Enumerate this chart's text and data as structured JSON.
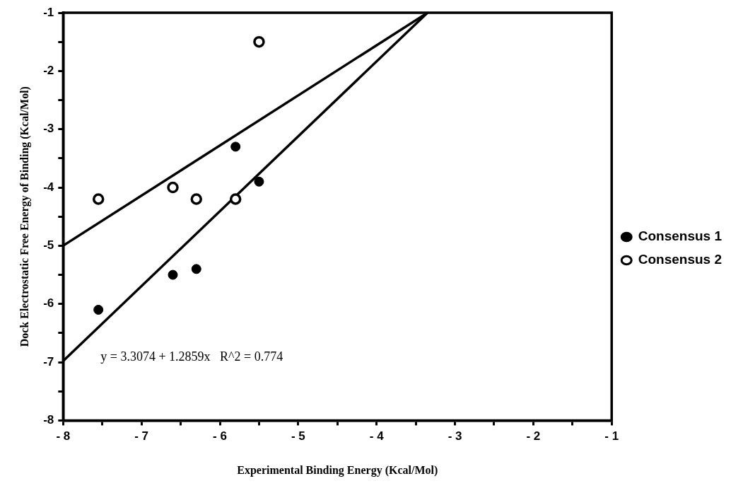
{
  "chart_data": {
    "type": "scatter",
    "xlabel": "Experimental Binding Energy (Kcal/Mol)",
    "ylabel": "Dock Electrostatic Free Energy of Binding (Kcal/Mol)",
    "series": [
      {
        "name": "Consensus 1",
        "color": "#000000",
        "x": [
          -7.55,
          -6.6,
          -6.3,
          -5.8,
          -5.5
        ],
        "values": [
          -6.1,
          -5.5,
          -5.4,
          -3.3,
          -3.9
        ]
      },
      {
        "name": "Consensus 2",
        "color": "#000000",
        "x": [
          -7.55,
          -6.6,
          -6.3,
          -5.8,
          -5.5
        ],
        "values": [
          -4.2,
          -4.0,
          -4.2,
          -4.2,
          -1.5
        ]
      },
      {
        "type": "line",
        "marker": "none",
        "color": "#000000",
        "x": [
          -8,
          -3.35
        ],
        "values": [
          -6.98,
          -1
        ]
      },
      {
        "type": "line",
        "marker": "none",
        "color": "#000000",
        "x": [
          -8,
          -3.35
        ],
        "values": [
          -5.0,
          -1
        ]
      }
    ],
    "annotations": [
      "y = 3.3074 + 1.2859x   R^2 = 0.774"
    ],
    "xlim": [
      -8,
      -1
    ],
    "ylim": [
      -8,
      -1
    ],
    "xticks": [
      {
        "value": -8,
        "label": "- 8"
      },
      {
        "value": -7.5,
        "label": null
      },
      {
        "value": -7,
        "label": "- 7"
      },
      {
        "value": -6.5,
        "label": null
      },
      {
        "value": -6,
        "label": "- 6"
      },
      {
        "value": -5.5,
        "label": null
      },
      {
        "value": -5,
        "label": "- 5"
      },
      {
        "value": -4.5,
        "label": null
      },
      {
        "value": -4,
        "label": "- 4"
      },
      {
        "value": -3.5,
        "label": null
      },
      {
        "value": -3,
        "label": "- 3"
      },
      {
        "value": -2.5,
        "label": null
      },
      {
        "value": -2,
        "label": "- 2"
      },
      {
        "value": -1.5,
        "label": null
      },
      {
        "value": -1,
        "label": "- 1"
      }
    ],
    "yticks": [
      -8,
      {
        "value": -7.5,
        "label": null
      },
      -7,
      {
        "value": -6.5,
        "label": null
      },
      -6,
      {
        "value": -5.5,
        "label": null
      },
      -5,
      {
        "value": -4.5,
        "label": null
      },
      -4,
      {
        "value": -3.5,
        "label": null
      },
      -3,
      {
        "value": -2.5,
        "label": null
      },
      -2,
      {
        "value": -1.5,
        "label": null
      },
      -1
    ],
    "marker": "circle",
    "legend": "right",
    "grid": false
  }
}
